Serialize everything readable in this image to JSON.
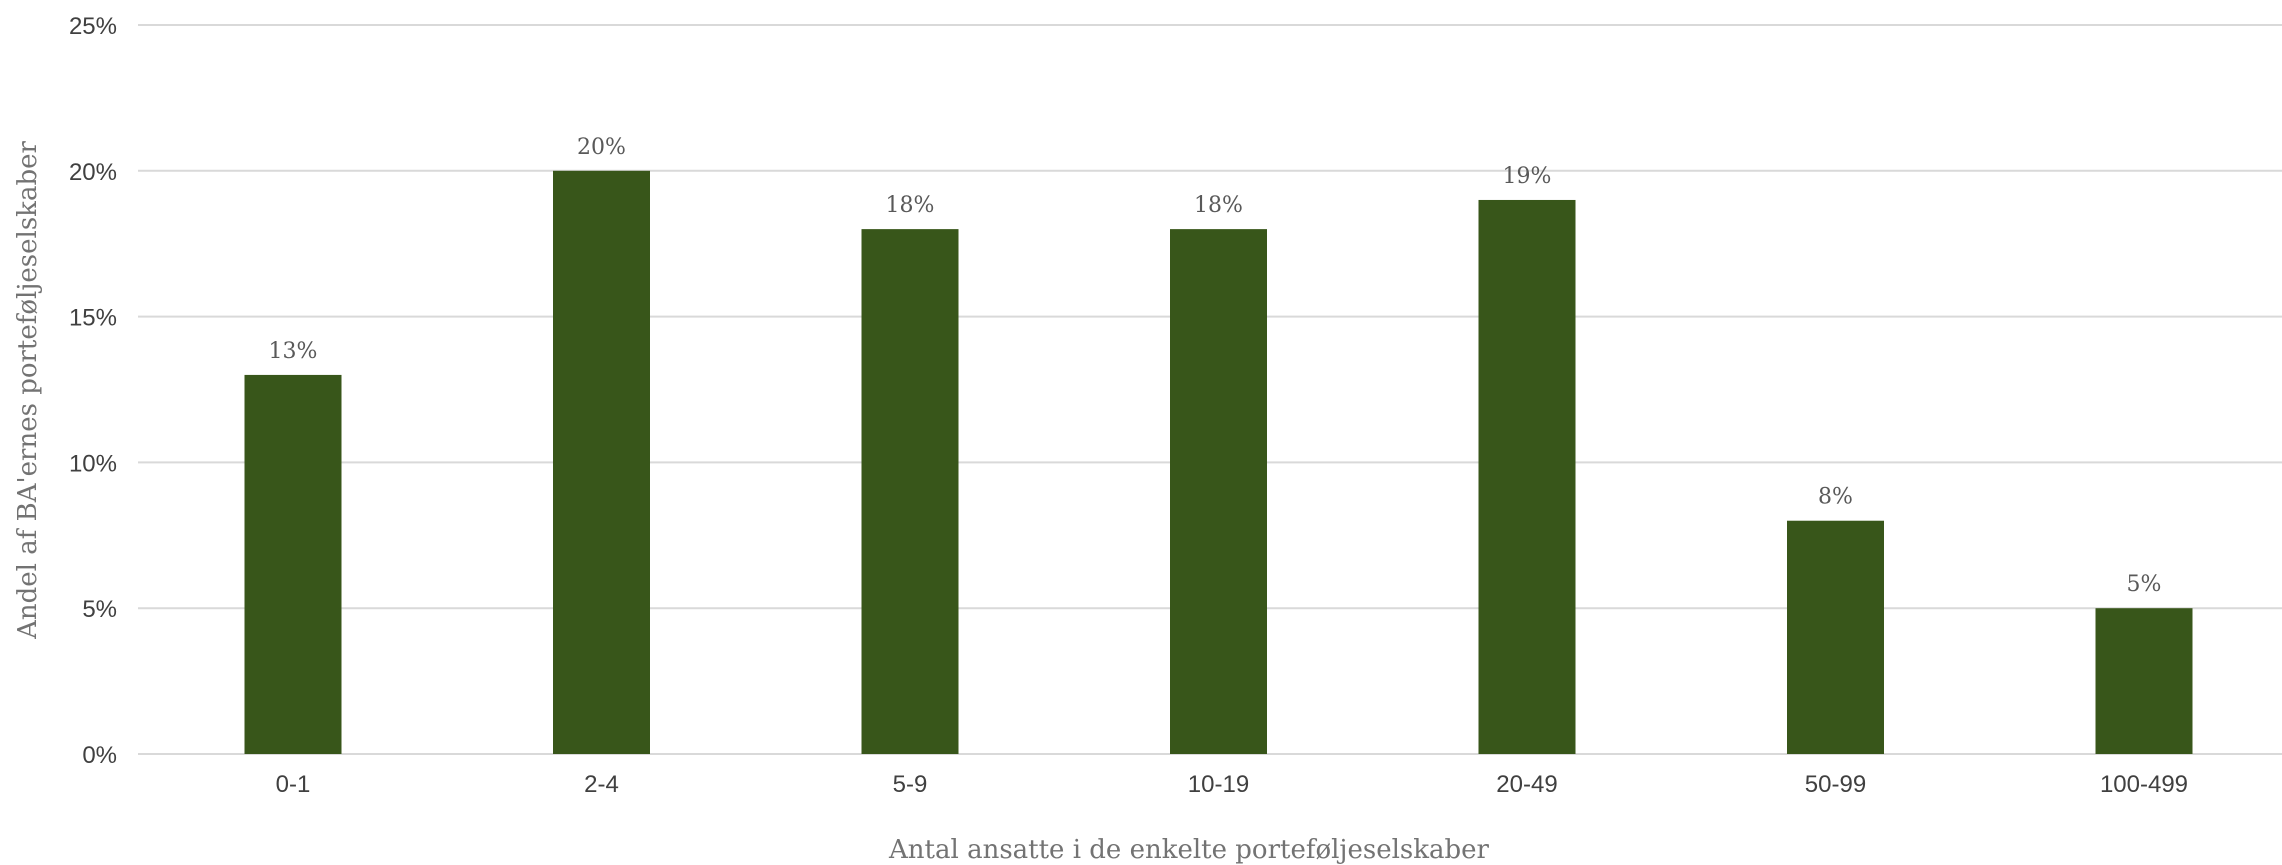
{
  "chart_data": {
    "type": "bar",
    "categories": [
      "0-1",
      "2-4",
      "5-9",
      "10-19",
      "20-49",
      "50-99",
      "100-499"
    ],
    "values": [
      13,
      20,
      18,
      18,
      19,
      8,
      5
    ],
    "data_labels": [
      "13%",
      "20%",
      "18%",
      "18%",
      "19%",
      "8%",
      "5%"
    ],
    "ylim": [
      0,
      25
    ],
    "yticks": [
      0,
      5,
      10,
      15,
      20,
      25
    ],
    "ytick_labels": [
      "0%",
      "5%",
      "10%",
      "15%",
      "20%",
      "25%"
    ],
    "xlabel": "Antal ansatte i de enkelte porteføljeselskaber",
    "ylabel": "Andel af BA'ernes porteføljeselskaber",
    "title": "",
    "grid": true,
    "bar_color": "#38561A"
  }
}
